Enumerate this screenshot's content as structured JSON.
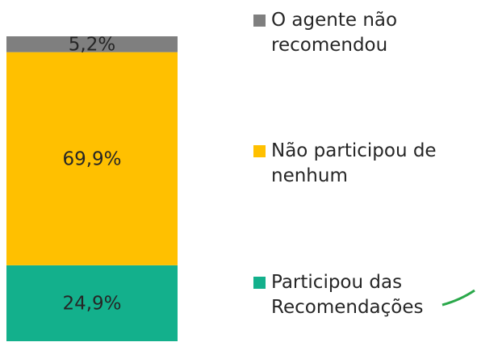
{
  "chart_data": {
    "type": "stacked-bar",
    "categories": [
      null
    ],
    "ylim": [
      0,
      100
    ],
    "series": [
      {
        "name": "Participou das Recomendações",
        "color": "#13b08c",
        "values": [
          24.9
        ],
        "value_labels": [
          "24,9%"
        ]
      },
      {
        "name": "Não participou de nenhum",
        "color": "#ffc000",
        "values": [
          69.9
        ],
        "value_labels": [
          "69,9%"
        ]
      },
      {
        "name": "O agente não recomendou",
        "color": "#7f7f7f",
        "values": [
          5.2
        ],
        "value_labels": [
          "5,2%"
        ]
      }
    ]
  }
}
